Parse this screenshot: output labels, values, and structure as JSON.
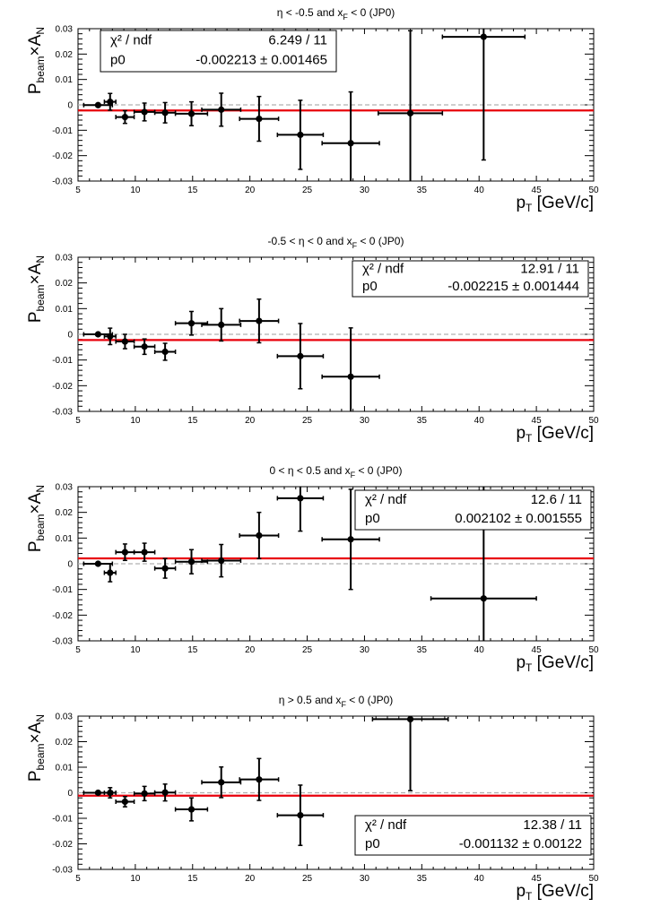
{
  "chart_data": [
    {
      "type": "scatter",
      "title": "η < -0.5 and x_F < 0 (JP0)",
      "title_parts": {
        "pre": "η < -0.5 and x",
        "sub": "F",
        "post": " < 0 (JP0)"
      },
      "ylabel": {
        "p": "P",
        "beam": "beam",
        "x": "×A",
        "n": "N"
      },
      "xlabel": {
        "p": "p",
        "t": "T",
        "rest": " [GeV/c]"
      },
      "xlim": [
        5,
        50
      ],
      "ylim": [
        -0.03,
        0.03
      ],
      "xticks": [
        5,
        10,
        15,
        20,
        25,
        30,
        35,
        40,
        45,
        50
      ],
      "yticks": [
        -0.03,
        -0.02,
        -0.01,
        0,
        0.01,
        0.02,
        0.03
      ],
      "ytick_labels": [
        "-0.03",
        "-0.02",
        "-0.01",
        "0",
        "0.01",
        "0.02",
        "0.03"
      ],
      "legend_position": "top-left",
      "fit": {
        "chi2_label": "χ² / ndf",
        "chi2": "6.249 / 11",
        "p0_label": "p0",
        "p0": "-0.002213 ± 0.001465",
        "value": -0.002213
      },
      "points": [
        {
          "x": 6.75,
          "xerr": 1.25,
          "y": -0.0001,
          "yerr": 0.0
        },
        {
          "x": 7.8,
          "xerr": 0.5,
          "y": 0.0012,
          "yerr": 0.0033
        },
        {
          "x": 9.1,
          "xerr": 0.8,
          "y": -0.0048,
          "yerr": 0.0025
        },
        {
          "x": 10.8,
          "xerr": 0.9,
          "y": -0.0028,
          "yerr": 0.0035
        },
        {
          "x": 12.6,
          "xerr": 0.9,
          "y": -0.0031,
          "yerr": 0.004
        },
        {
          "x": 14.9,
          "xerr": 1.4,
          "y": -0.0035,
          "yerr": 0.0047
        },
        {
          "x": 17.5,
          "xerr": 1.7,
          "y": -0.0019,
          "yerr": 0.0065
        },
        {
          "x": 20.8,
          "xerr": 1.7,
          "y": -0.0055,
          "yerr": 0.0088
        },
        {
          "x": 24.4,
          "xerr": 2.0,
          "y": -0.0118,
          "yerr": 0.0136
        },
        {
          "x": 28.8,
          "xerr": 2.5,
          "y": -0.0151,
          "yerr": 0.0202
        },
        {
          "x": 34.0,
          "xerr": 2.8,
          "y": -0.0033,
          "yerr": 0.0325
        },
        {
          "x": 40.4,
          "xerr": 3.6,
          "y": 0.0268,
          "yerr": 0.0485
        }
      ]
    },
    {
      "type": "scatter",
      "title": "-0.5 < η < 0 and x_F < 0 (JP0)",
      "title_parts": {
        "pre": "-0.5 < η < 0 and x",
        "sub": "F",
        "post": " < 0 (JP0)"
      },
      "ylabel": {
        "p": "P",
        "beam": "beam",
        "x": "×A",
        "n": "N"
      },
      "xlabel": {
        "p": "p",
        "t": "T",
        "rest": " [GeV/c]"
      },
      "xlim": [
        5,
        50
      ],
      "ylim": [
        -0.03,
        0.03
      ],
      "xticks": [
        5,
        10,
        15,
        20,
        25,
        30,
        35,
        40,
        45,
        50
      ],
      "yticks": [
        -0.03,
        -0.02,
        -0.01,
        0,
        0.01,
        0.02,
        0.03
      ],
      "ytick_labels": [
        "-0.03",
        "-0.02",
        "-0.01",
        "0",
        "0.01",
        "0.02",
        "0.03"
      ],
      "legend_position": "top-right",
      "fit": {
        "chi2_label": "χ² / ndf",
        "chi2": "12.91 / 11",
        "p0_label": "p0",
        "p0": "-0.002215 ± 0.001444",
        "value": -0.002215
      },
      "points": [
        {
          "x": 6.75,
          "xerr": 1.25,
          "y": 0.0,
          "yerr": 0.0
        },
        {
          "x": 7.8,
          "xerr": 0.5,
          "y": -0.0008,
          "yerr": 0.0032
        },
        {
          "x": 9.1,
          "xerr": 0.8,
          "y": -0.0028,
          "yerr": 0.0028
        },
        {
          "x": 10.8,
          "xerr": 0.9,
          "y": -0.0048,
          "yerr": 0.003
        },
        {
          "x": 12.6,
          "xerr": 0.9,
          "y": -0.0068,
          "yerr": 0.0033
        },
        {
          "x": 14.9,
          "xerr": 1.4,
          "y": 0.0043,
          "yerr": 0.0046
        },
        {
          "x": 17.5,
          "xerr": 1.7,
          "y": 0.0037,
          "yerr": 0.0063
        },
        {
          "x": 20.8,
          "xerr": 1.7,
          "y": 0.0052,
          "yerr": 0.0085
        },
        {
          "x": 24.4,
          "xerr": 2.0,
          "y": -0.0085,
          "yerr": 0.0127
        },
        {
          "x": 28.8,
          "xerr": 2.5,
          "y": -0.0165,
          "yerr": 0.019
        }
      ]
    },
    {
      "type": "scatter",
      "title": "0 < η < 0.5 and x_F < 0 (JP0)",
      "title_parts": {
        "pre": "0 < η < 0.5 and x",
        "sub": "F",
        "post": " < 0 (JP0)"
      },
      "ylabel": {
        "p": "P",
        "beam": "beam",
        "x": "×A",
        "n": "N"
      },
      "xlabel": {
        "p": "p",
        "t": "T",
        "rest": " [GeV/c]"
      },
      "xlim": [
        5,
        50
      ],
      "ylim": [
        -0.03,
        0.03
      ],
      "xticks": [
        5,
        10,
        15,
        20,
        25,
        30,
        35,
        40,
        45,
        50
      ],
      "yticks": [
        -0.03,
        -0.02,
        -0.01,
        0,
        0.01,
        0.02,
        0.03
      ],
      "ytick_labels": [
        "-0.03",
        "-0.02",
        "-0.01",
        "0",
        "0.01",
        "0.02",
        "0.03"
      ],
      "legend_position": "top-right",
      "fit": {
        "chi2_label": "χ² / ndf",
        "chi2": "12.6 / 11",
        "p0_label": "p0",
        "p0": "0.002102 ± 0.001555",
        "value": 0.002102
      },
      "points": [
        {
          "x": 6.75,
          "xerr": 1.25,
          "y": 0.0,
          "yerr": 0.0
        },
        {
          "x": 7.8,
          "xerr": 0.5,
          "y": -0.0035,
          "yerr": 0.0035
        },
        {
          "x": 9.1,
          "xerr": 0.8,
          "y": 0.0045,
          "yerr": 0.0032
        },
        {
          "x": 10.8,
          "xerr": 0.9,
          "y": 0.0045,
          "yerr": 0.0035
        },
        {
          "x": 12.6,
          "xerr": 0.9,
          "y": -0.0018,
          "yerr": 0.0038
        },
        {
          "x": 14.9,
          "xerr": 1.4,
          "y": 0.0008,
          "yerr": 0.0047
        },
        {
          "x": 17.5,
          "xerr": 1.7,
          "y": 0.0012,
          "yerr": 0.0063
        },
        {
          "x": 20.8,
          "xerr": 1.7,
          "y": 0.011,
          "yerr": 0.009
        },
        {
          "x": 24.4,
          "xerr": 2.0,
          "y": 0.0255,
          "yerr": 0.0128
        },
        {
          "x": 28.8,
          "xerr": 2.5,
          "y": 0.0095,
          "yerr": 0.0195
        },
        {
          "x": 40.4,
          "xerr": 4.6,
          "y": -0.0135,
          "yerr": 0.045
        }
      ]
    },
    {
      "type": "scatter",
      "title": "η > 0.5 and x_F < 0 (JP0)",
      "title_parts": {
        "pre": "η > 0.5 and x",
        "sub": "F",
        "post": " < 0 (JP0)"
      },
      "ylabel": {
        "p": "P",
        "beam": "beam",
        "x": "×A",
        "n": "N"
      },
      "xlabel": {
        "p": "p",
        "t": "T",
        "rest": " [GeV/c]"
      },
      "xlim": [
        5,
        50
      ],
      "ylim": [
        -0.03,
        0.03
      ],
      "xticks": [
        5,
        10,
        15,
        20,
        25,
        30,
        35,
        40,
        45,
        50
      ],
      "yticks": [
        -0.03,
        -0.02,
        -0.01,
        0,
        0.01,
        0.02,
        0.03
      ],
      "ytick_labels": [
        "-0.03",
        "-0.02",
        "-0.01",
        "0",
        "0.01",
        "0.02",
        "0.03"
      ],
      "legend_position": "bottom-right",
      "fit": {
        "chi2_label": "χ² / ndf",
        "chi2": "12.38 / 11",
        "p0_label": "p0",
        "p0": "-0.001132 ± 0.00122",
        "value": -0.001132
      },
      "points": [
        {
          "x": 6.75,
          "xerr": 1.25,
          "y": 0.0,
          "yerr": 0.0
        },
        {
          "x": 7.8,
          "xerr": 0.5,
          "y": 0.0,
          "yerr": 0.002
        },
        {
          "x": 9.1,
          "xerr": 0.8,
          "y": -0.0035,
          "yerr": 0.002
        },
        {
          "x": 10.8,
          "xerr": 0.9,
          "y": -0.0003,
          "yerr": 0.0028
        },
        {
          "x": 12.6,
          "xerr": 0.9,
          "y": 0.0001,
          "yerr": 0.0033
        },
        {
          "x": 14.9,
          "xerr": 1.4,
          "y": -0.0065,
          "yerr": 0.0045
        },
        {
          "x": 17.5,
          "xerr": 1.7,
          "y": 0.0041,
          "yerr": 0.006
        },
        {
          "x": 20.8,
          "xerr": 1.7,
          "y": 0.0052,
          "yerr": 0.0082
        },
        {
          "x": 24.4,
          "xerr": 2.0,
          "y": -0.0088,
          "yerr": 0.0118
        },
        {
          "x": 34.0,
          "xerr": 3.3,
          "y": 0.0288,
          "yerr": 0.028
        }
      ]
    }
  ],
  "colors": {
    "fit_line": "#e8000b",
    "zero_line": "#b0b0b0",
    "markers": "#000000",
    "frame": "#000000"
  }
}
